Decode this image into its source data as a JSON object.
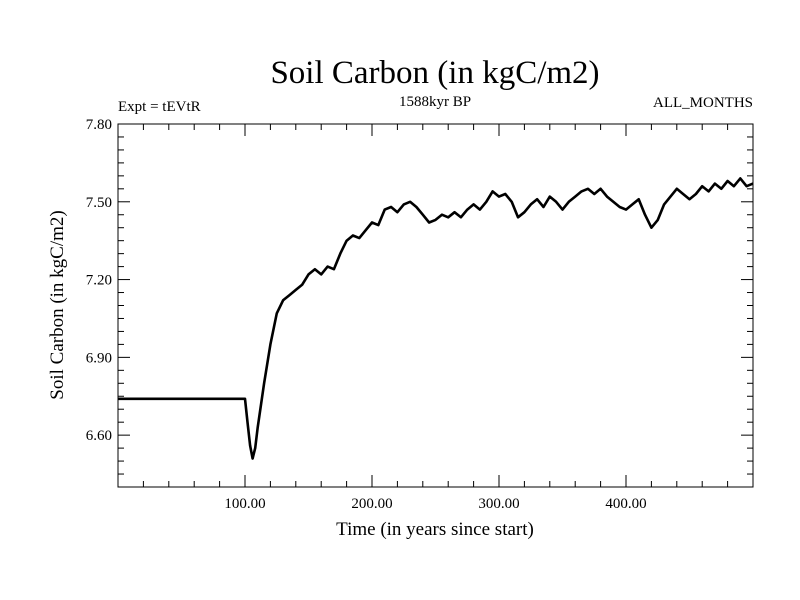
{
  "chart_data": {
    "type": "line",
    "title": "Soil Carbon (in kgC/m2)",
    "subtitle_left": "Expt = tEVtR",
    "subtitle_center": "1588kyr BP",
    "subtitle_right": "ALL_MONTHS",
    "xlabel": "Time (in years since start)",
    "ylabel": "Soil Carbon (in kgC/m2)",
    "xlim": [
      0,
      500
    ],
    "ylim": [
      6.4,
      7.8
    ],
    "xticks": [
      {
        "value": 100,
        "label": "100.00"
      },
      {
        "value": 200,
        "label": "200.00"
      },
      {
        "value": 300,
        "label": "300.00"
      },
      {
        "value": 400,
        "label": "400.00"
      }
    ],
    "yticks": [
      {
        "value": 6.6,
        "label": "6.60"
      },
      {
        "value": 6.9,
        "label": "6.90"
      },
      {
        "value": 7.2,
        "label": "7.20"
      },
      {
        "value": 7.5,
        "label": "7.50"
      },
      {
        "value": 7.8,
        "label": "7.80"
      }
    ],
    "series": [
      {
        "name": "Soil Carbon",
        "x": [
          0,
          100,
          102,
          104,
          106,
          108,
          110,
          115,
          120,
          125,
          130,
          135,
          140,
          145,
          150,
          155,
          160,
          165,
          170,
          175,
          180,
          185,
          190,
          195,
          200,
          205,
          210,
          215,
          220,
          225,
          230,
          235,
          240,
          245,
          250,
          255,
          260,
          265,
          270,
          275,
          280,
          285,
          290,
          295,
          300,
          305,
          310,
          315,
          320,
          325,
          330,
          335,
          340,
          345,
          350,
          355,
          360,
          365,
          370,
          375,
          380,
          385,
          390,
          395,
          400,
          405,
          410,
          415,
          420,
          425,
          430,
          435,
          440,
          445,
          450,
          455,
          460,
          465,
          470,
          475,
          480,
          485,
          490,
          495,
          500
        ],
        "values": [
          6.74,
          6.74,
          6.65,
          6.56,
          6.51,
          6.55,
          6.63,
          6.8,
          6.95,
          7.07,
          7.12,
          7.14,
          7.16,
          7.18,
          7.22,
          7.24,
          7.22,
          7.25,
          7.24,
          7.3,
          7.35,
          7.37,
          7.36,
          7.39,
          7.42,
          7.41,
          7.47,
          7.48,
          7.46,
          7.49,
          7.5,
          7.48,
          7.45,
          7.42,
          7.43,
          7.45,
          7.44,
          7.46,
          7.44,
          7.47,
          7.49,
          7.47,
          7.5,
          7.54,
          7.52,
          7.53,
          7.5,
          7.44,
          7.46,
          7.49,
          7.51,
          7.48,
          7.52,
          7.5,
          7.47,
          7.5,
          7.52,
          7.54,
          7.55,
          7.53,
          7.55,
          7.52,
          7.5,
          7.48,
          7.47,
          7.49,
          7.51,
          7.45,
          7.4,
          7.43,
          7.49,
          7.52,
          7.55,
          7.53,
          7.51,
          7.53,
          7.56,
          7.54,
          7.57,
          7.55,
          7.58,
          7.56,
          7.59,
          7.56,
          7.57
        ]
      }
    ]
  }
}
